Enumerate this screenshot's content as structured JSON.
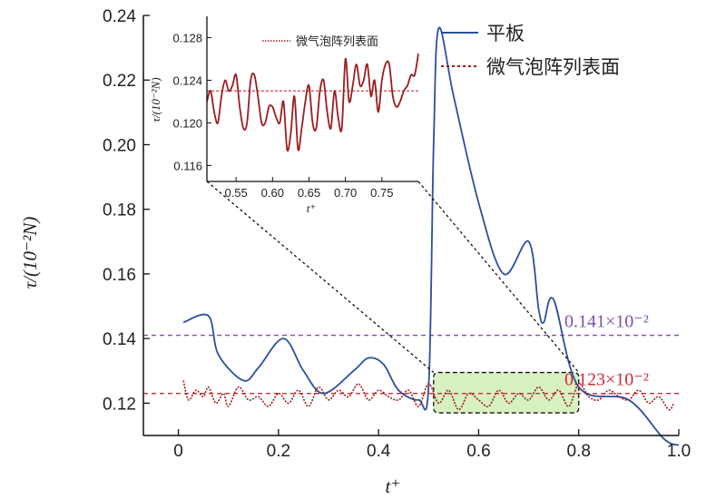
{
  "chart_data": {
    "type": "line",
    "xlabel": "t⁺",
    "ylabel": "τ/(10⁻²N)",
    "xlim": [
      -0.07,
      1.0
    ],
    "ylim": [
      0.11,
      0.24
    ],
    "xticks": [
      "0",
      "0.2",
      "0.4",
      "0.6",
      "0.8",
      "1.0"
    ],
    "xtick_values": [
      0,
      0.2,
      0.4,
      0.6,
      0.8,
      1.0
    ],
    "yticks": [
      "0.12",
      "0.14",
      "0.16",
      "0.18",
      "0.20",
      "0.22",
      "0.24"
    ],
    "ytick_values": [
      0.12,
      0.14,
      0.16,
      0.18,
      0.2,
      0.22,
      0.24
    ],
    "legend_position": "top-right",
    "series": [
      {
        "name": "平板",
        "color": "#2b4fa0",
        "style": "solid",
        "x": [
          0.01,
          0.06,
          0.08,
          0.13,
          0.16,
          0.21,
          0.25,
          0.29,
          0.35,
          0.38,
          0.41,
          0.44,
          0.48,
          0.5,
          0.51,
          0.52,
          0.55,
          0.6,
          0.65,
          0.7,
          0.72,
          0.73,
          0.75,
          0.8,
          0.9,
          0.97,
          1.0
        ],
        "y": [
          0.145,
          0.147,
          0.135,
          0.127,
          0.131,
          0.14,
          0.13,
          0.123,
          0.13,
          0.134,
          0.132,
          0.124,
          0.121,
          0.125,
          0.2,
          0.236,
          0.215,
          0.182,
          0.16,
          0.17,
          0.149,
          0.145,
          0.152,
          0.125,
          0.121,
          0.109,
          0.107
        ]
      },
      {
        "name": "微气泡阵列表面",
        "color": "#a01b1b",
        "style": "dotted",
        "x": [
          0.01,
          0.02,
          0.035,
          0.05,
          0.06,
          0.075,
          0.09,
          0.1,
          0.12,
          0.14,
          0.16,
          0.18,
          0.2,
          0.22,
          0.24,
          0.26,
          0.28,
          0.3,
          0.32,
          0.34,
          0.36,
          0.38,
          0.4,
          0.42,
          0.44,
          0.46,
          0.48,
          0.5,
          0.52,
          0.54,
          0.56,
          0.58,
          0.6,
          0.62,
          0.64,
          0.66,
          0.68,
          0.7,
          0.72,
          0.74,
          0.76,
          0.78,
          0.8,
          0.82,
          0.84,
          0.86,
          0.88,
          0.9,
          0.92,
          0.94,
          0.96,
          0.98,
          0.99
        ],
        "y": [
          0.127,
          0.121,
          0.124,
          0.122,
          0.125,
          0.12,
          0.123,
          0.119,
          0.125,
          0.121,
          0.122,
          0.119,
          0.123,
          0.12,
          0.124,
          0.119,
          0.125,
          0.121,
          0.124,
          0.122,
          0.126,
          0.121,
          0.124,
          0.122,
          0.121,
          0.124,
          0.119,
          0.126,
          0.12,
          0.124,
          0.118,
          0.123,
          0.121,
          0.119,
          0.124,
          0.12,
          0.123,
          0.121,
          0.125,
          0.121,
          0.124,
          0.119,
          0.126,
          0.122,
          0.121,
          0.124,
          0.122,
          0.121,
          0.124,
          0.12,
          0.122,
          0.118,
          0.12
        ]
      }
    ],
    "reference_lines": [
      {
        "y": 0.141,
        "label": "0.141×10⁻²",
        "color": "#7b4fb0"
      },
      {
        "y": 0.123,
        "label": "0.123×10⁻²",
        "color": "#cf2a3a"
      }
    ],
    "highlight_box": {
      "x_range": [
        0.51,
        0.8
      ],
      "y_range": [
        0.117,
        0.1295
      ],
      "fill": "#d8f1c0"
    },
    "inset": {
      "xlabel": "t⁺",
      "ylabel": "τ/(10⁻²N)",
      "xlim": [
        0.51,
        0.8
      ],
      "ylim": [
        0.1145,
        0.13
      ],
      "xticks": [
        "0.55",
        "0.60",
        "0.65",
        "0.70",
        "0.75"
      ],
      "xtick_values": [
        0.55,
        0.6,
        0.65,
        0.7,
        0.75
      ],
      "yticks": [
        "0.116",
        "0.120",
        "0.124",
        "0.128"
      ],
      "ytick_values": [
        0.116,
        0.12,
        0.124,
        0.128
      ],
      "legend": "微气泡阵列表面",
      "reference_y": 0.123,
      "series": {
        "name": "微气泡阵列表面",
        "color": "#9b1c22",
        "x": [
          0.51,
          0.515,
          0.52,
          0.525,
          0.53,
          0.535,
          0.54,
          0.545,
          0.55,
          0.555,
          0.56,
          0.565,
          0.57,
          0.575,
          0.58,
          0.585,
          0.59,
          0.595,
          0.6,
          0.605,
          0.61,
          0.615,
          0.62,
          0.625,
          0.63,
          0.635,
          0.64,
          0.645,
          0.65,
          0.655,
          0.66,
          0.665,
          0.67,
          0.675,
          0.68,
          0.685,
          0.69,
          0.695,
          0.7,
          0.705,
          0.71,
          0.715,
          0.72,
          0.725,
          0.73,
          0.735,
          0.74,
          0.745,
          0.75,
          0.755,
          0.76,
          0.765,
          0.77,
          0.775,
          0.78,
          0.785,
          0.79,
          0.795,
          0.8
        ],
        "y": [
          0.122,
          0.123,
          0.121,
          0.12,
          0.1225,
          0.124,
          0.123,
          0.1235,
          0.1245,
          0.1215,
          0.1195,
          0.12,
          0.124,
          0.1245,
          0.1225,
          0.12,
          0.12,
          0.1215,
          0.1215,
          0.1205,
          0.12,
          0.122,
          0.1175,
          0.119,
          0.1225,
          0.1175,
          0.1195,
          0.122,
          0.1235,
          0.12,
          0.1195,
          0.123,
          0.124,
          0.121,
          0.1195,
          0.123,
          0.1205,
          0.1195,
          0.126,
          0.122,
          0.1235,
          0.1255,
          0.1235,
          0.124,
          0.1255,
          0.1225,
          0.124,
          0.121,
          0.124,
          0.1255,
          0.1255,
          0.1225,
          0.1215,
          0.122,
          0.123,
          0.1235,
          0.1245,
          0.1245,
          0.1265
        ]
      }
    }
  }
}
